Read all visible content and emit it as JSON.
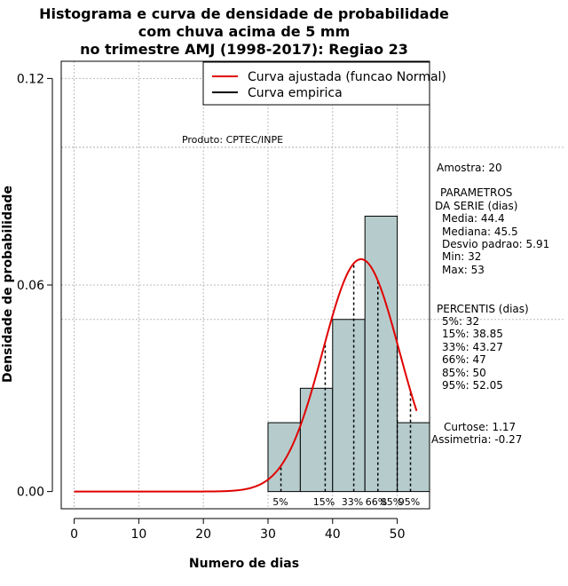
{
  "chart_data": {
    "type": "bar",
    "title_lines": [
      "Histograma e curva de densidade de probabilidade",
      "com chuva acima de 5 mm",
      "no trimestre AMJ (1998-2017): Regiao 23"
    ],
    "xlabel": "Numero de dias",
    "ylabel": "Densidade de probabilidade",
    "xlim": [
      -2,
      55
    ],
    "ylim": [
      -0.005,
      0.125
    ],
    "xticks": [
      0,
      10,
      20,
      30,
      40,
      50
    ],
    "yticks": [
      0.0,
      0.06,
      0.12
    ],
    "ytick_labels": [
      "0.00",
      "0.06",
      "0.12"
    ],
    "grid_x": [
      0,
      10,
      20,
      30,
      40,
      50
    ],
    "grid_y": [
      0.06,
      0.1,
      0.12
    ],
    "grid_y_long": [
      0.05
    ],
    "bins": [
      {
        "from": 30,
        "to": 35,
        "density": 0.02
      },
      {
        "from": 35,
        "to": 40,
        "density": 0.03
      },
      {
        "from": 40,
        "to": 45,
        "density": 0.05
      },
      {
        "from": 45,
        "to": 50,
        "density": 0.08
      },
      {
        "from": 50,
        "to": 55,
        "density": 0.02
      }
    ],
    "bar_color": "#b6cccc",
    "normal_curve": {
      "name": "Curva ajustada (funcao Normal)",
      "mean": 44.4,
      "sd": 5.91,
      "x_from": 0,
      "x_to": 53,
      "color": "#e00000"
    },
    "empirical_curve_name": "Curva empirica",
    "empirical_color": "#000000",
    "percentile_lines": [
      32,
      38.85,
      43.27,
      47,
      50,
      52.05
    ],
    "percentile_labels": [
      {
        "text": "5%",
        "x": 32
      },
      {
        "text": "15%",
        "x": 38.85
      },
      {
        "text": "33%",
        "x": 43.27
      },
      {
        "text": "66%",
        "x": 47
      },
      {
        "text": "85%",
        "x": 50
      },
      {
        "text": "95%",
        "x": 52.05
      }
    ],
    "product_label": "Produto: CPTEC/INPE",
    "legend_position": "top-right"
  },
  "stats_panel": {
    "sample": "Amostra: 20",
    "params_title_1": "PARAMETROS",
    "params_title_2": "DA SERIE (dias)",
    "media": "Media: 44.4",
    "mediana": "Mediana: 45.5",
    "desvio": "Desvio padrao: 5.91",
    "min": "Min: 32",
    "max": "Max: 53",
    "percentis_title": "PERCENTIS (dias)",
    "p5": "5%: 32",
    "p15": "15%: 38.85",
    "p33": "33%: 43.27",
    "p66": "66%: 47",
    "p85": "85%: 50",
    "p95": "95%: 52.05",
    "curtose": "Curtose: 1.17",
    "assimetria": "Assimetria: -0.27"
  }
}
